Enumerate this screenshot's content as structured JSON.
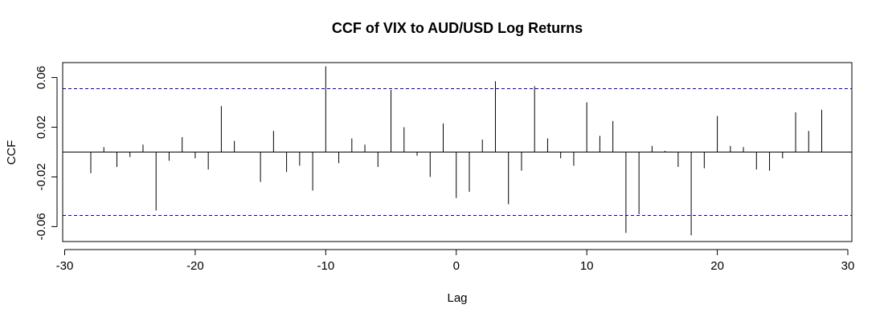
{
  "chart_data": {
    "type": "bar",
    "title": "CCF of VIX to AUD/USD Log Returns",
    "xlabel": "Lag",
    "ylabel": "CCF",
    "xlim": [
      -30,
      30
    ],
    "ylim": [
      -0.072,
      0.072
    ],
    "x_ticks": [
      -30,
      -20,
      -10,
      0,
      10,
      20,
      30
    ],
    "y_ticks": [
      -0.06,
      -0.02,
      0.02,
      0.06
    ],
    "y_tick_labels": [
      "-0.06",
      "-0.02",
      "0.02",
      "0.06"
    ],
    "x_tick_labels": [
      "-30",
      "-20",
      "-10",
      "0",
      "10",
      "20",
      "30"
    ],
    "confidence_limit": 0.051,
    "line_color": "#000000",
    "ci_color": "#0000cc",
    "lags": [
      -28,
      -27,
      -26,
      -25,
      -24,
      -23,
      -22,
      -21,
      -20,
      -19,
      -18,
      -17,
      -16,
      -15,
      -14,
      -13,
      -12,
      -11,
      -10,
      -9,
      -8,
      -7,
      -6,
      -5,
      -4,
      -3,
      -2,
      -1,
      0,
      1,
      2,
      3,
      4,
      5,
      6,
      7,
      8,
      9,
      10,
      11,
      12,
      13,
      14,
      15,
      16,
      17,
      18,
      19,
      20,
      21,
      22,
      23,
      24,
      25,
      26,
      27,
      28
    ],
    "values": [
      -0.017,
      0.004,
      -0.012,
      -0.004,
      0.006,
      -0.047,
      -0.007,
      0.012,
      -0.005,
      -0.014,
      0.037,
      0.009,
      0.0,
      -0.024,
      0.017,
      -0.016,
      -0.011,
      -0.031,
      0.069,
      -0.009,
      0.011,
      0.006,
      -0.012,
      0.05,
      0.02,
      -0.003,
      -0.02,
      0.023,
      -0.037,
      -0.032,
      0.01,
      0.057,
      -0.042,
      -0.015,
      0.053,
      0.011,
      -0.005,
      -0.011,
      0.04,
      0.013,
      0.025,
      -0.065,
      -0.05,
      0.005,
      0.001,
      -0.012,
      -0.067,
      -0.013,
      0.029,
      0.005,
      0.004,
      -0.014,
      -0.015,
      -0.005,
      0.032,
      0.017,
      0.034
    ]
  }
}
